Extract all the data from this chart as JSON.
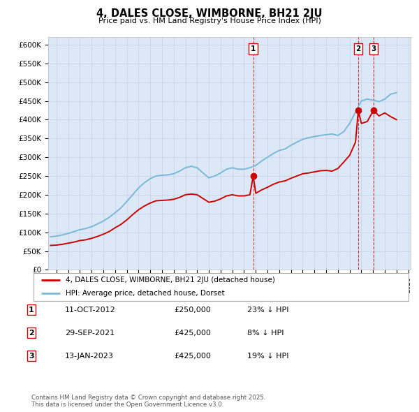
{
  "title": "4, DALES CLOSE, WIMBORNE, BH21 2JU",
  "subtitle": "Price paid vs. HM Land Registry's House Price Index (HPI)",
  "ylabel_ticks": [
    "£0",
    "£50K",
    "£100K",
    "£150K",
    "£200K",
    "£250K",
    "£300K",
    "£350K",
    "£400K",
    "£450K",
    "£500K",
    "£550K",
    "£600K"
  ],
  "ylim": [
    0,
    620000
  ],
  "xlim_start": 1995.3,
  "xlim_end": 2026.2,
  "grid_color": "#c8d4e8",
  "bg_color": "#ffffff",
  "plot_bg_color": "#dce8f5",
  "hpi_color": "#7ab8d9",
  "price_color": "#cc0000",
  "legend_label_price": "4, DALES CLOSE, WIMBORNE, BH21 2JU (detached house)",
  "legend_label_hpi": "HPI: Average price, detached house, Dorset",
  "transactions": [
    {
      "label": "1",
      "date": "11-OCT-2012",
      "price": 250000,
      "pct": "23%",
      "year": 2012.78
    },
    {
      "label": "2",
      "date": "29-SEP-2021",
      "price": 425000,
      "pct": "8%",
      "year": 2021.74
    },
    {
      "label": "3",
      "date": "13-JAN-2023",
      "price": 425000,
      "pct": "19%",
      "year": 2023.04
    }
  ],
  "footnote": "Contains HM Land Registry data © Crown copyright and database right 2025.\nThis data is licensed under the Open Government Licence v3.0.",
  "hpi_data_years": [
    1995.5,
    1996.0,
    1996.5,
    1997.0,
    1997.5,
    1998.0,
    1998.5,
    1999.0,
    1999.5,
    2000.0,
    2000.5,
    2001.0,
    2001.5,
    2002.0,
    2002.5,
    2003.0,
    2003.5,
    2004.0,
    2004.5,
    2005.0,
    2005.5,
    2006.0,
    2006.5,
    2007.0,
    2007.5,
    2008.0,
    2008.5,
    2009.0,
    2009.5,
    2010.0,
    2010.5,
    2011.0,
    2011.5,
    2012.0,
    2012.5,
    2013.0,
    2013.5,
    2014.0,
    2014.5,
    2015.0,
    2015.5,
    2016.0,
    2016.5,
    2017.0,
    2017.5,
    2018.0,
    2018.5,
    2019.0,
    2019.5,
    2020.0,
    2020.5,
    2021.0,
    2021.5,
    2022.0,
    2022.5,
    2023.0,
    2023.5,
    2024.0,
    2024.5,
    2025.0
  ],
  "hpi_data_values": [
    88000,
    90000,
    93000,
    97000,
    102000,
    107000,
    110000,
    115000,
    122000,
    130000,
    140000,
    152000,
    165000,
    182000,
    200000,
    218000,
    232000,
    243000,
    250000,
    252000,
    253000,
    256000,
    263000,
    272000,
    276000,
    272000,
    258000,
    245000,
    250000,
    258000,
    268000,
    272000,
    268000,
    268000,
    272000,
    278000,
    290000,
    300000,
    310000,
    318000,
    322000,
    332000,
    340000,
    348000,
    352000,
    355000,
    358000,
    360000,
    362000,
    358000,
    368000,
    390000,
    420000,
    450000,
    455000,
    452000,
    448000,
    455000,
    468000,
    472000
  ],
  "price_data_years": [
    1995.5,
    1996.0,
    1996.5,
    1997.0,
    1997.5,
    1998.0,
    1998.5,
    1999.0,
    1999.5,
    2000.0,
    2000.5,
    2001.0,
    2001.5,
    2002.0,
    2002.5,
    2003.0,
    2003.5,
    2004.0,
    2004.5,
    2005.0,
    2005.5,
    2006.0,
    2006.5,
    2007.0,
    2007.5,
    2008.0,
    2008.5,
    2009.0,
    2009.5,
    2010.0,
    2010.5,
    2011.0,
    2011.5,
    2012.0,
    2012.5,
    2012.78,
    2013.0,
    2013.5,
    2014.0,
    2014.5,
    2015.0,
    2015.5,
    2016.0,
    2016.5,
    2017.0,
    2017.5,
    2018.0,
    2018.5,
    2019.0,
    2019.5,
    2020.0,
    2020.5,
    2021.0,
    2021.5,
    2021.74,
    2022.0,
    2022.5,
    2023.04,
    2023.5,
    2024.0,
    2024.5,
    2025.0
  ],
  "price_data_values": [
    65000,
    66000,
    68000,
    71000,
    74000,
    78000,
    80000,
    84000,
    89000,
    95000,
    102000,
    112000,
    121000,
    133000,
    147000,
    160000,
    170000,
    178000,
    184000,
    185000,
    186000,
    188000,
    193000,
    200000,
    202000,
    200000,
    190000,
    180000,
    183000,
    189000,
    197000,
    200000,
    197000,
    197000,
    200000,
    250000,
    204000,
    213000,
    220000,
    228000,
    234000,
    237000,
    244000,
    250000,
    256000,
    258000,
    261000,
    264000,
    265000,
    263000,
    270000,
    287000,
    305000,
    340000,
    425000,
    390000,
    395000,
    425000,
    410000,
    418000,
    408000,
    400000
  ]
}
